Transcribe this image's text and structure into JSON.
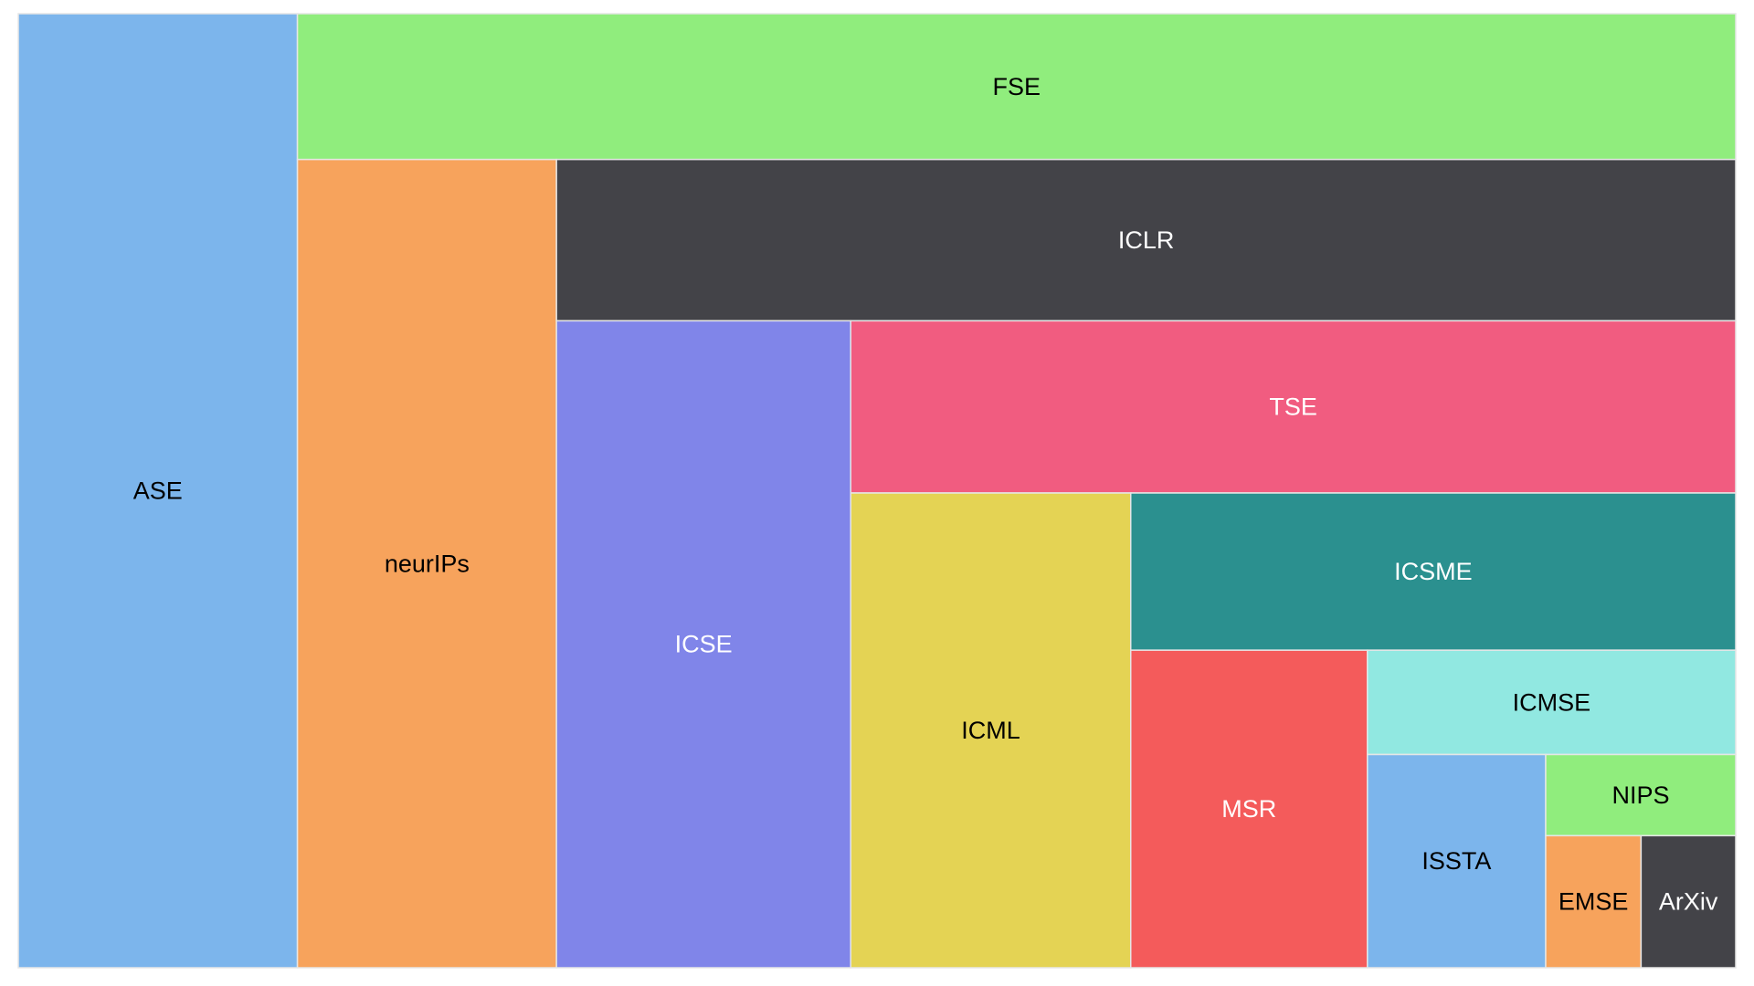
{
  "chart_data": {
    "type": "treemap",
    "title": "",
    "cells": [
      {
        "label": "ASE",
        "value": 57.52,
        "color": "#7cb5ec",
        "text_color": "#000000"
      },
      {
        "label": "FSE",
        "value": 45.28,
        "color": "#90ed7d",
        "text_color": "#000000"
      },
      {
        "label": "neurIPs",
        "value": 45.22,
        "color": "#f7a35c",
        "text_color": "#000000"
      },
      {
        "label": "ICLR",
        "value": 41.09,
        "color": "#434348",
        "text_color": "#ffffff"
      },
      {
        "label": "ICSE",
        "value": 41.11,
        "color": "#8085e9",
        "text_color": "#ffffff"
      },
      {
        "label": "TSE",
        "value": 32.91,
        "color": "#f15c80",
        "text_color": "#ffffff"
      },
      {
        "label": "ICML",
        "value": 28.71,
        "color": "#e4d354",
        "text_color": "#000000"
      },
      {
        "label": "ICSME",
        "value": 20.54,
        "color": "#2b908f",
        "text_color": "#ffffff"
      },
      {
        "label": "MSR",
        "value": 16.23,
        "color": "#f45b5b",
        "text_color": "#ffffff"
      },
      {
        "label": "ICMSE",
        "value": 8.3,
        "color": "#91e8e1",
        "text_color": "#000000"
      },
      {
        "label": "ISSTA",
        "value": 8.21,
        "color": "#7cb5ec",
        "text_color": "#000000"
      },
      {
        "label": "NIPS",
        "value": 3.33,
        "color": "#90ed7d",
        "text_color": "#000000"
      },
      {
        "label": "EMSE",
        "value": 2.72,
        "color": "#f7a35c",
        "text_color": "#000000"
      },
      {
        "label": "ArXiv",
        "value": 2.7,
        "color": "#434348",
        "text_color": "#ffffff"
      }
    ]
  }
}
